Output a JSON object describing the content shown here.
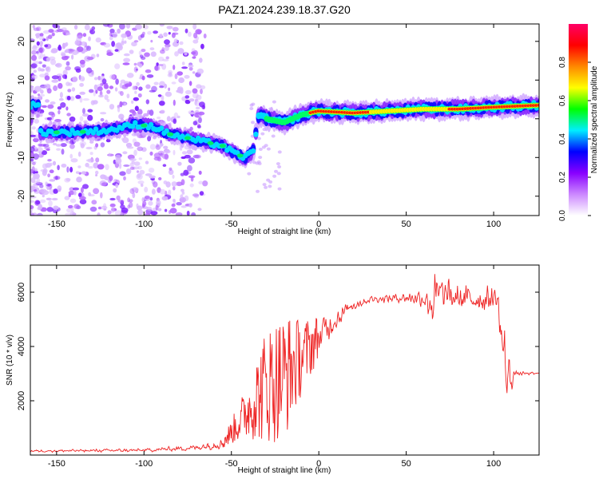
{
  "title": "PAZ1.2024.239.18.37.G20",
  "chart_data": [
    {
      "type": "heatmap",
      "xlabel": "Height of straight line (km)",
      "ylabel": "Frequency (Hz)",
      "xlim": [
        -165,
        126
      ],
      "ylim": [
        -25,
        24.5
      ],
      "xticks": [
        "-150",
        "-100",
        "-50",
        "0",
        "50",
        "100"
      ],
      "yticks": [
        "-20",
        "-10",
        "0",
        "10",
        "20"
      ],
      "ridge": [
        {
          "x": -160,
          "y": -3.5
        },
        {
          "x": -140,
          "y": -3.5
        },
        {
          "x": -120,
          "y": -3
        },
        {
          "x": -105,
          "y": -1.5
        },
        {
          "x": -95,
          "y": -2
        },
        {
          "x": -85,
          "y": -4
        },
        {
          "x": -75,
          "y": -5
        },
        {
          "x": -65,
          "y": -6
        },
        {
          "x": -55,
          "y": -7
        },
        {
          "x": -48,
          "y": -9
        },
        {
          "x": -42,
          "y": -10
        },
        {
          "x": -37,
          "y": -8
        },
        {
          "x": -35,
          "y": 1
        },
        {
          "x": -30,
          "y": 0
        },
        {
          "x": -20,
          "y": -1
        },
        {
          "x": -10,
          "y": 1
        },
        {
          "x": 0,
          "y": 2
        },
        {
          "x": 20,
          "y": 1.5
        },
        {
          "x": 40,
          "y": 2
        },
        {
          "x": 60,
          "y": 2.5
        },
        {
          "x": 80,
          "y": 2.5
        },
        {
          "x": 100,
          "y": 3
        },
        {
          "x": 126,
          "y": 3.5
        }
      ],
      "colorbar": {
        "label": "Normalized spectral amplitude",
        "range": [
          0,
          1
        ],
        "ticks": [
          "0.0",
          "0.2",
          "0.4",
          "0.6",
          "0.8"
        ],
        "colors": [
          "#ffffff",
          "#cc88ff",
          "#8800ff",
          "#0000ff",
          "#00eeff",
          "#00ff00",
          "#ffff00",
          "#ff8800",
          "#ff0000",
          "#ff0066"
        ]
      }
    },
    {
      "type": "line",
      "xlabel": "Height of straight line (km)",
      "ylabel": "SNR (10 * v/v)",
      "xlim": [
        -165,
        126
      ],
      "ylim": [
        0,
        7000
      ],
      "xticks": [
        "-150",
        "-100",
        "-50",
        "0",
        "50",
        "100"
      ],
      "yticks": [
        "2000",
        "4000",
        "6000"
      ],
      "color": "#ee2222",
      "envelope": [
        {
          "x": -165,
          "lo": 100,
          "hi": 200
        },
        {
          "x": -100,
          "lo": 100,
          "hi": 250
        },
        {
          "x": -70,
          "lo": 150,
          "hi": 400
        },
        {
          "x": -55,
          "lo": 200,
          "hi": 700
        },
        {
          "x": -50,
          "lo": 400,
          "hi": 1300
        },
        {
          "x": -40,
          "lo": 600,
          "hi": 2800
        },
        {
          "x": -30,
          "lo": 400,
          "hi": 4800
        },
        {
          "x": -20,
          "lo": 500,
          "hi": 5300
        },
        {
          "x": -10,
          "lo": 2200,
          "hi": 5000
        },
        {
          "x": 0,
          "lo": 3500,
          "hi": 5200
        },
        {
          "x": 10,
          "lo": 4600,
          "hi": 5500
        },
        {
          "x": 20,
          "lo": 5300,
          "hi": 5800
        },
        {
          "x": 30,
          "lo": 5600,
          "hi": 5900
        },
        {
          "x": 50,
          "lo": 5600,
          "hi": 6000
        },
        {
          "x": 60,
          "lo": 5400,
          "hi": 6200
        },
        {
          "x": 65,
          "lo": 4300,
          "hi": 7000
        },
        {
          "x": 70,
          "lo": 5100,
          "hi": 6700
        },
        {
          "x": 80,
          "lo": 5200,
          "hi": 6300
        },
        {
          "x": 95,
          "lo": 5200,
          "hi": 6300
        },
        {
          "x": 102,
          "lo": 5300,
          "hi": 6300
        },
        {
          "x": 105,
          "lo": 2500,
          "hi": 5500
        },
        {
          "x": 108,
          "lo": 1400,
          "hi": 4200
        },
        {
          "x": 112,
          "lo": 2900,
          "hi": 3100
        },
        {
          "x": 126,
          "lo": 2950,
          "hi": 3050
        }
      ]
    }
  ]
}
